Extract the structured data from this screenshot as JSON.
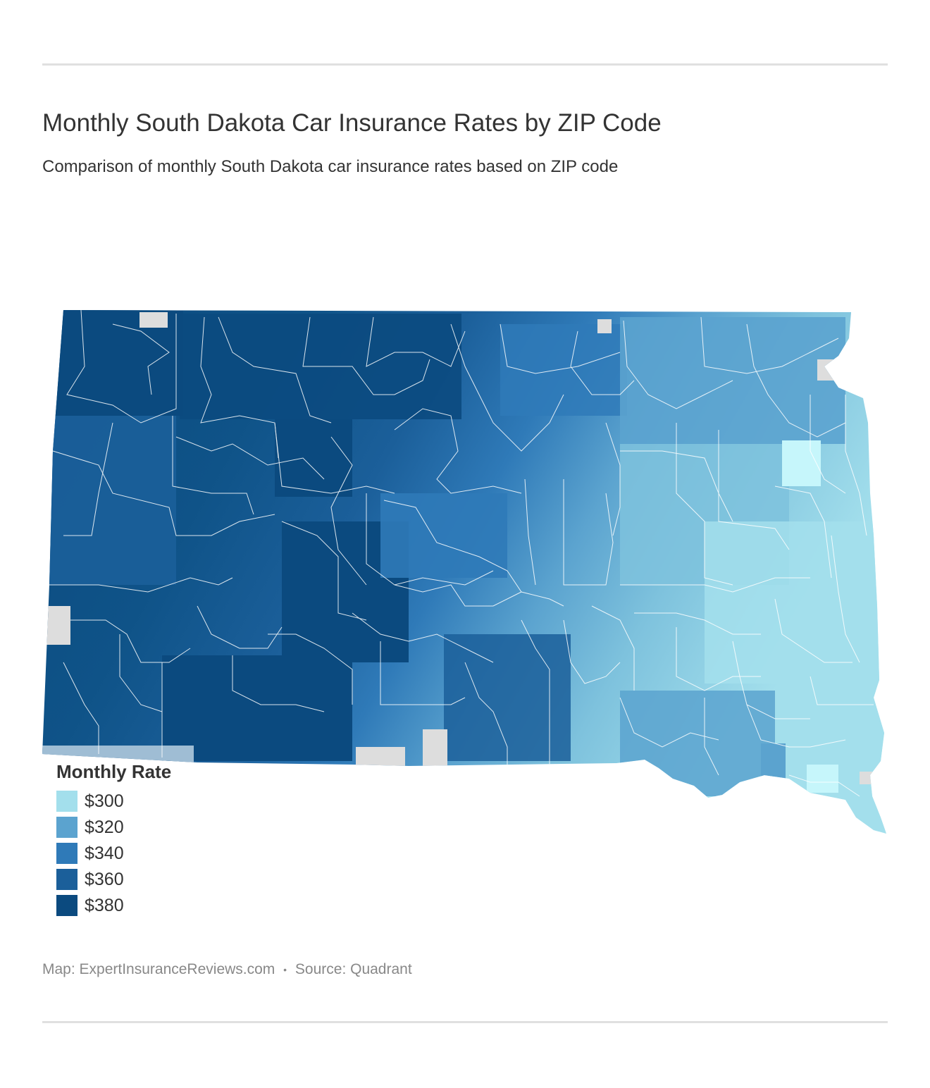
{
  "header": {
    "title": "Monthly South Dakota Car Insurance Rates by ZIP Code",
    "subtitle": "Comparison of monthly South Dakota car insurance rates based on ZIP code"
  },
  "legend": {
    "title": "Monthly Rate",
    "items": [
      {
        "label": "$300",
        "color": "#a3dfec"
      },
      {
        "label": "$320",
        "color": "#5ba3cf"
      },
      {
        "label": "$340",
        "color": "#2f7ab8"
      },
      {
        "label": "$360",
        "color": "#1b5f9a"
      },
      {
        "label": "$380",
        "color": "#0b4a7f"
      }
    ]
  },
  "map": {
    "region": "South Dakota",
    "gradient": "darkest in the northwest, lightest in the southeast",
    "no_data_color": "#dddddd",
    "zip_boundary_color": "#ffffff"
  },
  "footer": {
    "map_credit": "Map: ExpertInsuranceReviews.com",
    "separator": "•",
    "source": "Source: Quadrant"
  }
}
